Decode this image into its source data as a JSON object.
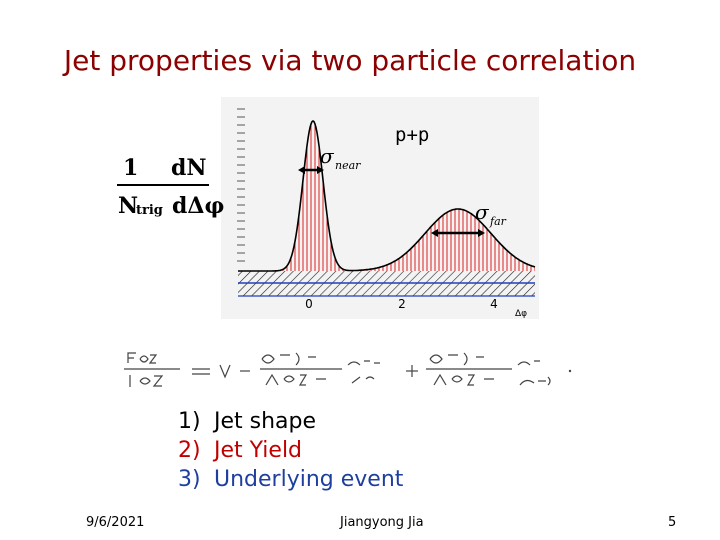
{
  "slide": {
    "title": "Jet properties via two particle correlation",
    "lhs": {
      "numerator": [
        "1",
        "dN"
      ],
      "denominator": [
        "N",
        "trig",
        "dΔφ"
      ]
    },
    "plot": {
      "label": "p+p",
      "sigma_near": "σ",
      "sigma_near_sub": "near",
      "sigma_far": "σ",
      "sigma_far_sub": "far",
      "ticks": [
        "0",
        "2",
        "4"
      ],
      "axis_label": "Δφ"
    },
    "list": [
      {
        "num": "1)",
        "text": "Jet shape",
        "color": "#000000"
      },
      {
        "num": "2)",
        "text": "Jet Yield",
        "color": "#c00000"
      },
      {
        "num": "3)",
        "text": "Underlying event",
        "color": "#1f3f9f"
      }
    ],
    "footer": {
      "date": "9/6/2021",
      "author": "Jiangyong Jia",
      "page": "5"
    }
  }
}
